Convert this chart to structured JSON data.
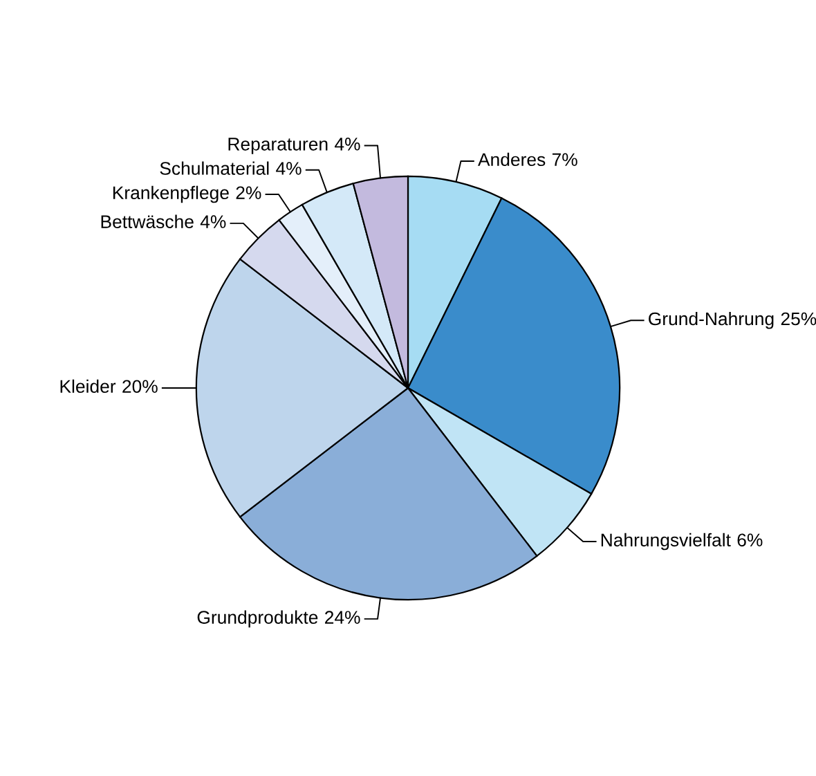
{
  "chart_data": {
    "type": "pie",
    "categories": [
      "Anderes",
      "Grund-Nahrung",
      "Nahrungsvielfalt",
      "Grundprodukte",
      "Kleider",
      "Bettwäsche",
      "Krankenpflege",
      "Schulmaterial",
      "Reparaturen"
    ],
    "values": [
      7,
      25,
      6,
      24,
      20,
      4,
      2,
      4,
      4
    ],
    "colors": [
      "#a6dcf3",
      "#3a8ccb",
      "#c0e4f5",
      "#8aaed8",
      "#bed5ec",
      "#d5d9ee",
      "#e4effa",
      "#d4e9f8",
      "#c3bade"
    ],
    "value_labels": [
      "7%",
      "25%",
      "6%",
      "24%",
      "20%",
      "4%",
      "2%",
      "4%",
      "4%"
    ],
    "legend": false
  }
}
